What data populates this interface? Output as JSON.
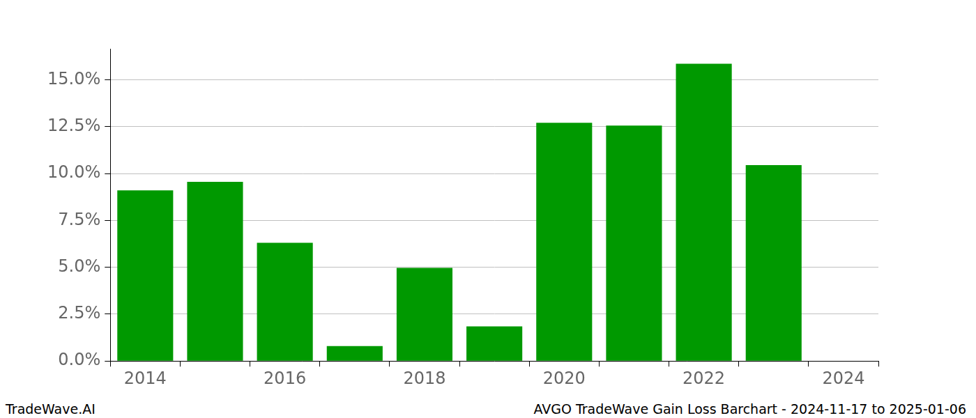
{
  "chart_data": {
    "type": "bar",
    "title": "AVGO TradeWave Gain Loss Barchart - 2024-11-17 to 2025-01-06",
    "annotations": [
      "TradeWave.AI"
    ],
    "categories": [
      "2014",
      null,
      "2016",
      null,
      "2018",
      null,
      "2020",
      null,
      "2022",
      null,
      "2024"
    ],
    "values": [
      9.1,
      9.55,
      6.3,
      0.8,
      4.97,
      1.85,
      12.7,
      12.55,
      15.85,
      10.45,
      0
    ],
    "color": "#009900",
    "ylim": [
      0,
      16.65
    ],
    "yticks": [
      {
        "value": 0,
        "label": "0.0%"
      },
      {
        "value": 2.5,
        "label": "2.5%"
      },
      {
        "value": 5,
        "label": "5.0%"
      },
      {
        "value": 7.5,
        "label": "7.5%"
      },
      {
        "value": 10,
        "label": "10.0%"
      },
      {
        "value": 12.5,
        "label": "12.5%"
      },
      {
        "value": 15,
        "label": "15.0%"
      }
    ],
    "grid": true,
    "data_labels": false
  }
}
